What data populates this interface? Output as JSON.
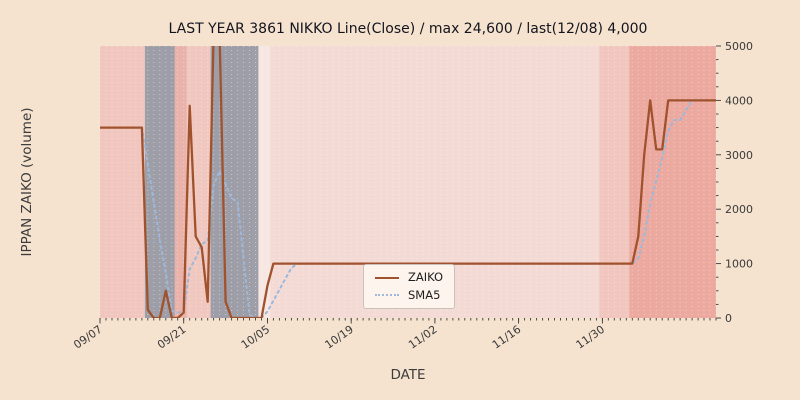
{
  "chart_data": {
    "type": "line",
    "title": "LAST YEAR 3861 NIKKO Line(Close) / max 24,600 / last(12/08) 4,000",
    "xlabel": "DATE",
    "ylabel": "IPPAN ZAIKO (volume)",
    "ylim": [
      0,
      5000
    ],
    "y_ticks": [
      0,
      1000,
      2000,
      3000,
      4000,
      5000
    ],
    "x_ticks": [
      "09/07",
      "09/21",
      "10/05",
      "10/19",
      "11/02",
      "11/16",
      "11/30"
    ],
    "figure_bg": "#f5e3cf",
    "plot_bg": "#f4dad5",
    "grid": "white dotted vertical day lines",
    "legend_position": "lower center",
    "sma_window": 5,
    "dates": [
      "09/07",
      "09/08",
      "09/09",
      "09/10",
      "09/11",
      "09/12",
      "09/13",
      "09/14",
      "09/15",
      "09/16",
      "09/17",
      "09/18",
      "09/19",
      "09/20",
      "09/21",
      "09/22",
      "09/23",
      "09/24",
      "09/25",
      "09/26",
      "09/27",
      "09/28",
      "09/29",
      "09/30",
      "10/01",
      "10/02",
      "10/03",
      "10/04",
      "10/05",
      "10/06",
      "10/07",
      "10/08",
      "10/09",
      "10/10",
      "10/11",
      "10/12",
      "10/13",
      "10/14",
      "10/15",
      "10/16",
      "10/17",
      "10/18",
      "10/19",
      "10/20",
      "10/21",
      "10/22",
      "10/23",
      "10/24",
      "10/25",
      "10/26",
      "10/27",
      "10/28",
      "10/29",
      "10/30",
      "10/31",
      "11/01",
      "11/02",
      "11/03",
      "11/04",
      "11/05",
      "11/06",
      "11/07",
      "11/08",
      "11/09",
      "11/10",
      "11/11",
      "11/12",
      "11/13",
      "11/14",
      "11/15",
      "11/16",
      "11/17",
      "11/18",
      "11/19",
      "11/20",
      "11/21",
      "11/22",
      "11/23",
      "11/24",
      "11/25",
      "11/26",
      "11/27",
      "11/28",
      "11/29",
      "11/30",
      "12/01",
      "12/02",
      "12/03",
      "12/04",
      "12/05",
      "12/06",
      "12/07",
      "12/08",
      "12/09",
      "12/10",
      "12/11",
      "12/12",
      "12/13",
      "12/14",
      "12/15",
      "12/16",
      "12/17",
      "12/18",
      "12/19"
    ],
    "series": [
      {
        "name": "ZAIKO",
        "color": "#a0522d",
        "style": "solid",
        "values": [
          3500,
          3500,
          3500,
          3500,
          3500,
          3500,
          3500,
          3500,
          150,
          0,
          0,
          500,
          0,
          0,
          100,
          3900,
          1500,
          1300,
          300,
          5200,
          5200,
          300,
          0,
          0,
          0,
          0,
          0,
          0,
          600,
          1000,
          1000,
          1000,
          1000,
          1000,
          1000,
          1000,
          1000,
          1000,
          1000,
          1000,
          1000,
          1000,
          1000,
          1000,
          1000,
          1000,
          1000,
          1000,
          1000,
          1000,
          1000,
          1000,
          1000,
          1000,
          1000,
          1000,
          1000,
          1000,
          1000,
          1000,
          1000,
          1000,
          1000,
          1000,
          1000,
          1000,
          1000,
          1000,
          1000,
          1000,
          1000,
          1000,
          1000,
          1000,
          1000,
          1000,
          1000,
          1000,
          1000,
          1000,
          1000,
          1000,
          1000,
          1000,
          1000,
          1000,
          1000,
          1000,
          1000,
          1000,
          1500,
          3000,
          4000,
          3100,
          3100,
          4000,
          4000,
          4000,
          4000,
          4000,
          4000,
          4000,
          4000,
          4000
        ]
      },
      {
        "name": "SMA5",
        "color": "#9db8d9",
        "style": "dotted",
        "derived": "5-day moving average of ZAIKO"
      }
    ],
    "bands": [
      {
        "start": "09/07",
        "end": "09/14",
        "color": "#f0c6be"
      },
      {
        "start": "09/15",
        "end": "09/19",
        "color": "#9e9ea8"
      },
      {
        "start": "09/20",
        "end": "09/21",
        "color": "#e9b2aa"
      },
      {
        "start": "09/22",
        "end": "09/25",
        "color": "#f0c8c0"
      },
      {
        "start": "09/26",
        "end": "10/03",
        "color": "#9e9ea8"
      },
      {
        "start": "10/04",
        "end": "10/05",
        "color": "#f7e7e2"
      },
      {
        "start": "10/06",
        "end": "11/29",
        "color": "#f4dad5"
      },
      {
        "start": "11/30",
        "end": "12/04",
        "color": "#f1c6be"
      },
      {
        "start": "12/05",
        "end": "12/19",
        "color": "#eba9a0"
      }
    ]
  }
}
